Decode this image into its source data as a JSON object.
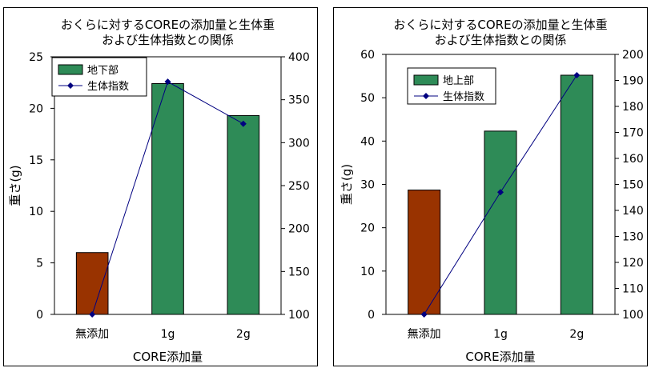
{
  "colors": {
    "above_ground_bar": "#2E8B57",
    "control_bar": "#993300",
    "index_line": "#000080",
    "border": "#000000"
  },
  "chart_data": [
    {
      "type": "bar",
      "title": "おくらに対するCOREの添加量と生体重\nおよび生体指数との関係",
      "xlabel": "CORE添加量",
      "ylabel": "重さ(g)",
      "categories": [
        "無添加",
        "1g",
        "2g"
      ],
      "series": [
        {
          "name": "地下部",
          "type": "bar",
          "axis": "left",
          "values": [
            6.0,
            22.4,
            19.3
          ],
          "colors": [
            "#993300",
            "#2E8B57",
            "#2E8B57"
          ]
        },
        {
          "name": "生体指数",
          "type": "line",
          "axis": "right",
          "values": [
            100,
            371,
            322
          ],
          "color": "#000080"
        }
      ],
      "ylim": [
        0,
        25
      ],
      "yticks": [
        "0",
        "5",
        "10",
        "15",
        "20",
        "25"
      ],
      "y2lim": [
        100,
        400
      ],
      "y2ticks": [
        "100",
        "150",
        "200",
        "250",
        "300",
        "350",
        "400"
      ],
      "legend": "top-left"
    },
    {
      "type": "bar",
      "title": "おくらに対するCOREの添加量と生体重\nおよび生体指数との関係",
      "xlabel": "CORE添加量",
      "ylabel": "重さ(g)",
      "categories": [
        "無添加",
        "1g",
        "2g"
      ],
      "series": [
        {
          "name": "地上部",
          "type": "bar",
          "axis": "left",
          "values": [
            28.7,
            42.3,
            55.2
          ],
          "colors": [
            "#993300",
            "#2E8B57",
            "#2E8B57"
          ]
        },
        {
          "name": "生体指数",
          "type": "line",
          "axis": "right",
          "values": [
            100,
            147,
            192
          ],
          "color": "#000080"
        }
      ],
      "ylim": [
        0,
        60
      ],
      "yticks": [
        "0",
        "10",
        "20",
        "30",
        "40",
        "50",
        "60"
      ],
      "y2lim": [
        100,
        200
      ],
      "y2ticks": [
        "100",
        "110",
        "120",
        "130",
        "140",
        "150",
        "160",
        "170",
        "180",
        "190",
        "200"
      ],
      "legend": "top-center"
    }
  ]
}
